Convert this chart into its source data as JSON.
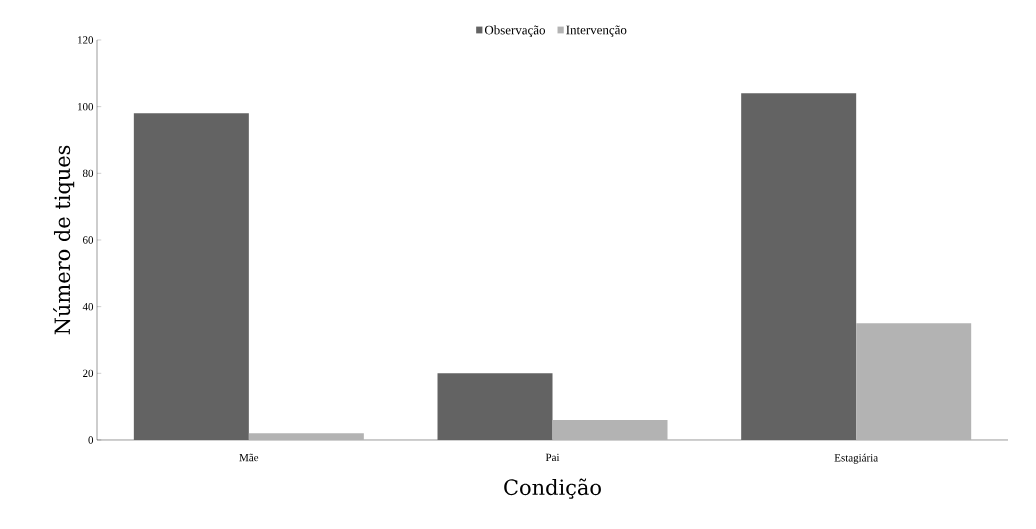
{
  "chart_data": {
    "type": "bar",
    "xlabel": "Condição",
    "ylabel": "Número de tiques",
    "categories": [
      "Mãe",
      "Pai",
      "Estagiária"
    ],
    "series": [
      {
        "name": "Observação",
        "color": "#636363",
        "values": [
          98,
          20,
          104
        ]
      },
      {
        "name": "Intervenção",
        "color": "#b3b3b3",
        "values": [
          2,
          6,
          35
        ]
      }
    ],
    "ylim": [
      0,
      120
    ],
    "yticks": [
      0,
      20,
      40,
      60,
      80,
      100,
      120
    ],
    "legend": "top"
  }
}
